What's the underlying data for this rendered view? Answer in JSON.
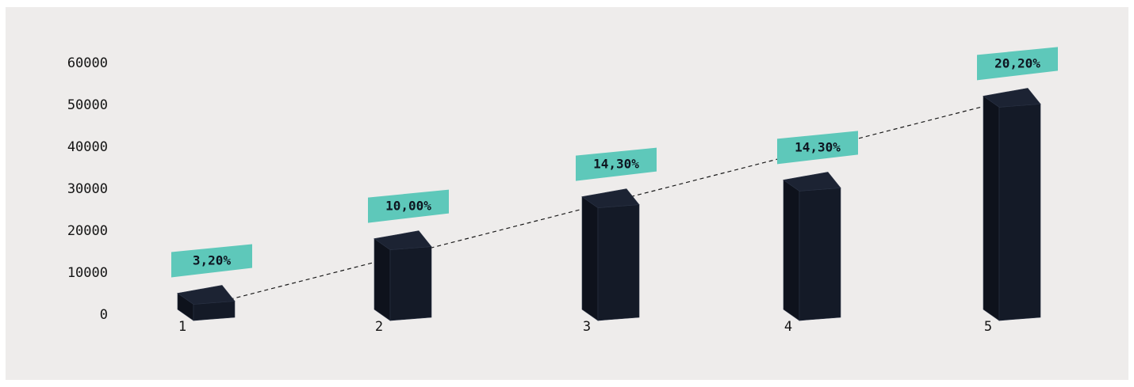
{
  "chart_data": {
    "type": "bar",
    "categories": [
      "1",
      "2",
      "3",
      "4",
      "5"
    ],
    "values": [
      5000,
      18000,
      28000,
      32000,
      52000
    ],
    "data_labels": [
      "3,20%",
      "10,00%",
      "14,30%",
      "14,30%",
      "20,20%"
    ],
    "y_ticks": [
      "0",
      "10000",
      "20000",
      "30000",
      "40000",
      "50000",
      "60000"
    ],
    "ylim": [
      0,
      60000
    ],
    "title": "",
    "xlabel": "",
    "ylabel": "",
    "grid": false,
    "trendline": true,
    "colors": {
      "background": "#eeeceb",
      "bar_front": "#141a27",
      "bar_side": "#0e121c",
      "bar_top": "#1c2333",
      "label_bg": "#5ec8ba",
      "trendline": "#1a1a1a"
    }
  }
}
